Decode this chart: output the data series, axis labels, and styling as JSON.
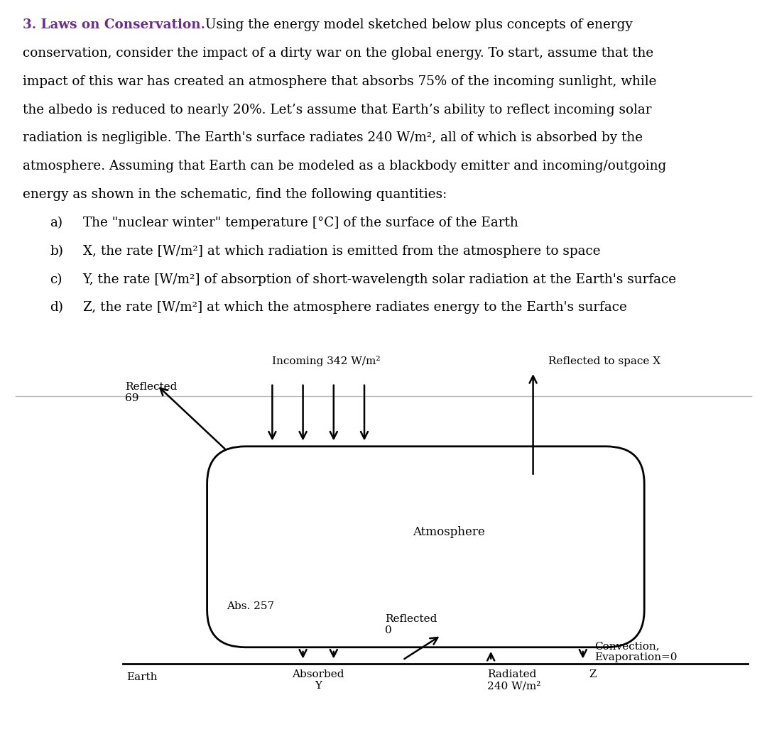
{
  "background_color": "#ffffff",
  "text_color": "#000000",
  "title_bold_color": "#6B2D8B",
  "title_bold_text": "3. Laws on Conservation.",
  "diagram": {
    "atmosphere_label": "Atmosphere",
    "abs_label": "Abs. 257",
    "incoming_label": "Incoming 342 W/m²",
    "reflected_space_label": "Reflected to space X",
    "reflected_label": "Reflected\n69",
    "convection_label": "Convection,\nEvaporation=0",
    "reflected0_label": "Reflected\n0",
    "absorbed_label": "Absorbed\nY",
    "radiated_label": "Radiated\n240 W/m²",
    "z_label": "Z",
    "earth_label": "Earth"
  }
}
